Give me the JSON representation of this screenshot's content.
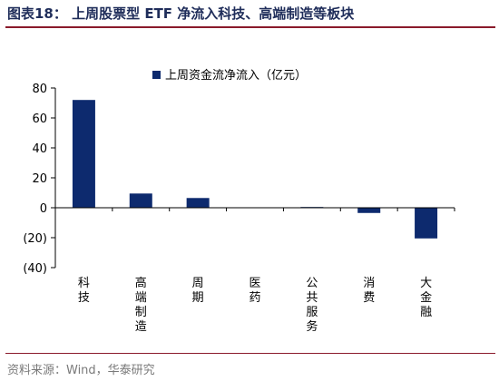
{
  "figure_title": "图表18：   上周股票型 ETF 净流入科技、高端制造等板块",
  "source": "资料来源：Wind，华泰研究",
  "colors": {
    "bar": "#0d2a6e",
    "axis": "#000000",
    "rule": "#8a1a2b"
  },
  "chart_data": {
    "type": "bar",
    "categories": [
      "科技",
      "高端制造",
      "周期",
      "医药",
      "公共服务",
      "消费",
      "大金融"
    ],
    "series": [
      {
        "name": "上周资金流净流入（亿元）",
        "values": [
          72,
          9.5,
          6.5,
          0.3,
          0.5,
          -3.5,
          -20.5
        ]
      }
    ],
    "ylim": [
      -40,
      80
    ],
    "yticks": [
      80,
      60,
      40,
      20,
      0,
      -20,
      -40
    ],
    "ytick_labels": [
      "80",
      "60",
      "40",
      "20",
      "0",
      "(20)",
      "(40)"
    ],
    "legend_position": "top-center",
    "grid": false
  }
}
